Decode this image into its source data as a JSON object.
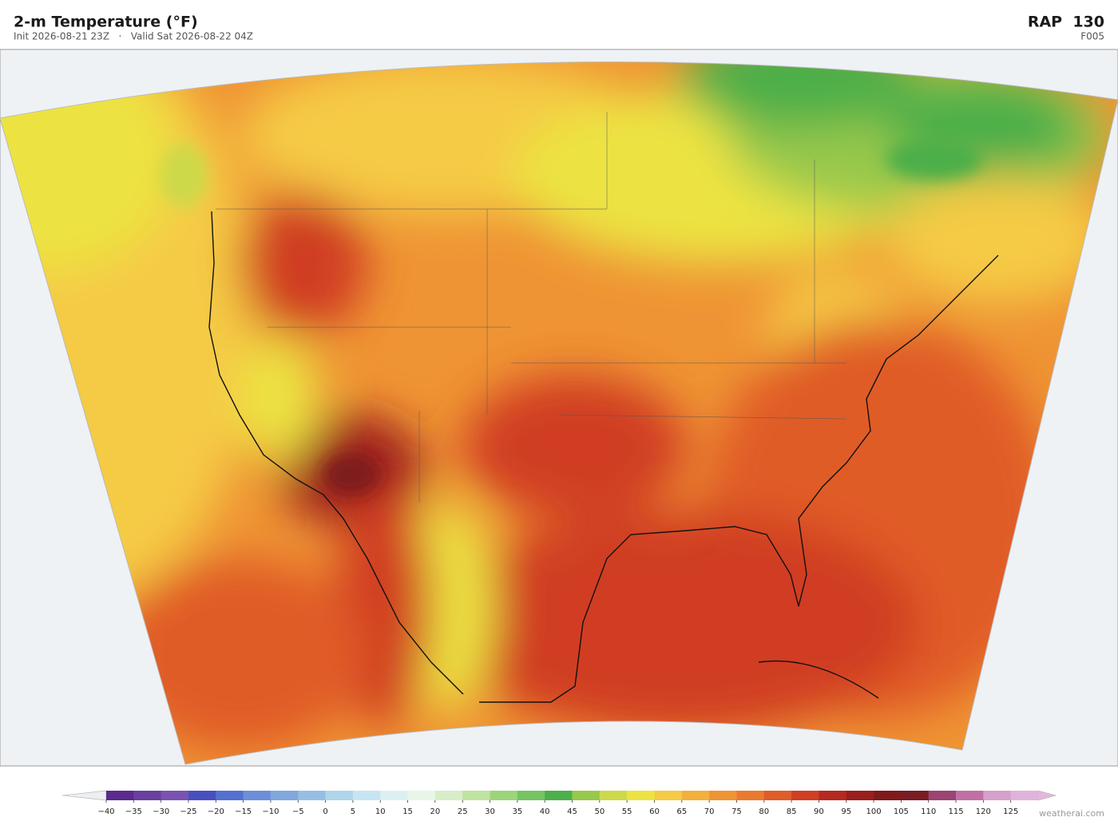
{
  "header": {
    "title": "2-m Temperature  (°F)",
    "subtitle": "Init 2026-08-21 23Z   ·   Valid Sat 2026-08-22 04Z",
    "model": "RAP  130",
    "forecast_hour": "F005"
  },
  "colorbar": {
    "clim": [
      -40,
      130
    ],
    "colors": [
      "#5b2a8e",
      "#6a3f9f",
      "#7a53b0",
      "#4a4fc0",
      "#5470d0",
      "#6b8fd8",
      "#80a8dc",
      "#95bfe2",
      "#afd5ea",
      "#c7e5f1",
      "#dcf0f2",
      "#e8f6e8",
      "#d7edc8",
      "#bfe3a0",
      "#9cd47a",
      "#74c462",
      "#4caf4a",
      "#98c84c",
      "#cdd94a",
      "#ece343",
      "#f5ca44",
      "#f3b03c",
      "#ef9434",
      "#ea7a2e",
      "#e05c28",
      "#d03e24",
      "#b42a20",
      "#9a1e1e",
      "#7e1a1c",
      "#7a1c24",
      "#9c4472",
      "#c070a6",
      "#d6a0cc",
      "#e0b4da"
    ],
    "under_color": "#eceff1",
    "over_color": "#e4b8dc",
    "ticks": [
      {
        "value": -40,
        "label": "−40"
      },
      {
        "value": -35,
        "label": "−35"
      },
      {
        "value": -30,
        "label": "−30"
      },
      {
        "value": -25,
        "label": "−25"
      },
      {
        "value": -20,
        "label": "−20"
      },
      {
        "value": -15,
        "label": "−15"
      },
      {
        "value": -10,
        "label": "−10"
      },
      {
        "value": -5,
        "label": "−5"
      },
      0,
      5,
      10,
      15,
      20,
      25,
      30,
      35,
      40,
      45,
      50,
      55,
      60,
      65,
      70,
      75,
      80,
      85,
      90,
      95,
      100,
      105,
      110,
      115,
      120,
      125
    ]
  },
  "footer": {
    "credit": "weatherai.com"
  }
}
